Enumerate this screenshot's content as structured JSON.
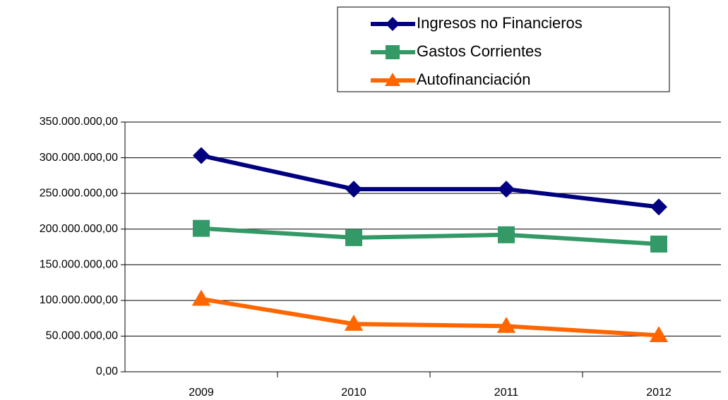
{
  "chart_data": {
    "type": "line",
    "categories": [
      "2009",
      "2010",
      "2011",
      "2012"
    ],
    "series": [
      {
        "name": "Ingresos no Financieros",
        "color": "#000080",
        "marker": "diamond",
        "values": [
          303000000,
          256000000,
          256000000,
          231000000
        ]
      },
      {
        "name": "Gastos Corrientes",
        "color": "#339966",
        "marker": "square",
        "values": [
          201000000,
          188000000,
          192000000,
          179000000
        ]
      },
      {
        "name": "Autofinanciación",
        "color": "#ff6600",
        "marker": "triangle",
        "values": [
          102000000,
          67000000,
          64000000,
          51000000
        ]
      }
    ],
    "ylim": [
      0,
      350000000
    ],
    "yticks": [
      {
        "value": 0,
        "label": "0,00"
      },
      {
        "value": 50000000,
        "label": "50.000.000,00"
      },
      {
        "value": 100000000,
        "label": "100.000.000,00"
      },
      {
        "value": 150000000,
        "label": "150.000.000,00"
      },
      {
        "value": 200000000,
        "label": "200.000.000,00"
      },
      {
        "value": 250000000,
        "label": "250.000.000,00"
      },
      {
        "value": 300000000,
        "label": "300.000.000,00"
      },
      {
        "value": 350000000,
        "label": "350.000.000,00"
      }
    ],
    "grid": true,
    "legend": "top"
  }
}
